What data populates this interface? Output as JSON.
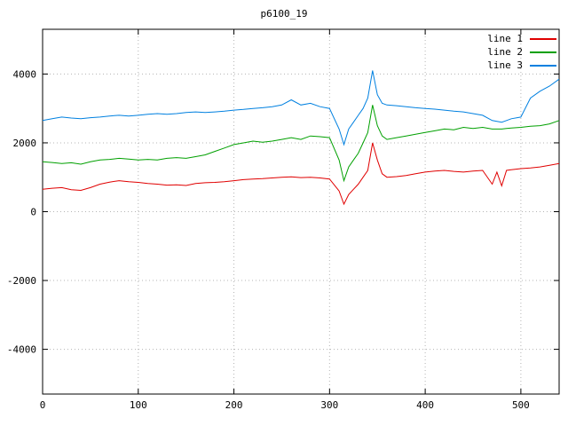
{
  "chart_data": {
    "type": "line",
    "title": "p6100_19",
    "xlabel": "",
    "ylabel": "",
    "grid": true,
    "legend_position": "top-right",
    "x_range": [
      0,
      540
    ],
    "y_range": [
      -5300,
      5300
    ],
    "x_ticks": [
      0,
      100,
      200,
      300,
      400,
      500
    ],
    "y_ticks": [
      -4000,
      -2000,
      0,
      2000,
      4000
    ],
    "x": [
      0,
      10,
      20,
      30,
      40,
      50,
      60,
      70,
      80,
      90,
      100,
      110,
      120,
      130,
      140,
      150,
      160,
      170,
      180,
      190,
      200,
      210,
      220,
      230,
      240,
      250,
      260,
      270,
      280,
      290,
      300,
      310,
      315,
      320,
      325,
      330,
      335,
      340,
      345,
      350,
      355,
      360,
      370,
      380,
      390,
      400,
      410,
      420,
      430,
      440,
      450,
      460,
      470,
      475,
      480,
      485,
      490,
      500,
      510,
      520,
      530,
      540
    ],
    "series": [
      {
        "name": "line 1",
        "color": "#e00000",
        "values": [
          650,
          680,
          700,
          640,
          620,
          700,
          800,
          860,
          900,
          870,
          850,
          820,
          800,
          770,
          780,
          760,
          820,
          840,
          850,
          870,
          900,
          930,
          950,
          960,
          980,
          1000,
          1010,
          990,
          1000,
          980,
          950,
          600,
          220,
          500,
          650,
          800,
          1000,
          1200,
          2000,
          1500,
          1100,
          1000,
          1020,
          1050,
          1100,
          1150,
          1180,
          1200,
          1170,
          1150,
          1180,
          1200,
          800,
          1150,
          750,
          1200,
          1220,
          1250,
          1270,
          1300,
          1350,
          1400
        ]
      },
      {
        "name": "line 2",
        "color": "#00a000",
        "values": [
          1450,
          1430,
          1400,
          1420,
          1380,
          1450,
          1500,
          1520,
          1550,
          1530,
          1500,
          1520,
          1500,
          1550,
          1570,
          1550,
          1600,
          1650,
          1750,
          1850,
          1950,
          2000,
          2050,
          2020,
          2050,
          2100,
          2150,
          2100,
          2200,
          2180,
          2150,
          1500,
          900,
          1300,
          1500,
          1700,
          2000,
          2300,
          3100,
          2500,
          2200,
          2100,
          2150,
          2200,
          2250,
          2300,
          2350,
          2400,
          2380,
          2450,
          2420,
          2450,
          2400,
          2400,
          2400,
          2420,
          2430,
          2450,
          2480,
          2500,
          2550,
          2650
        ]
      },
      {
        "name": "line 3",
        "color": "#0080e0",
        "values": [
          2650,
          2700,
          2750,
          2720,
          2700,
          2730,
          2750,
          2780,
          2800,
          2780,
          2800,
          2830,
          2850,
          2830,
          2850,
          2880,
          2900,
          2880,
          2900,
          2920,
          2950,
          2970,
          3000,
          3020,
          3050,
          3100,
          3250,
          3100,
          3150,
          3050,
          3000,
          2400,
          1950,
          2400,
          2600,
          2800,
          3000,
          3300,
          4100,
          3400,
          3150,
          3100,
          3080,
          3050,
          3020,
          3000,
          2980,
          2950,
          2920,
          2900,
          2850,
          2800,
          2650,
          2625,
          2600,
          2650,
          2700,
          2750,
          3300,
          3500,
          3650,
          3850
        ]
      }
    ],
    "colors": {
      "grid": "#b4b4b4",
      "border": "#000000",
      "background": "#ffffff"
    }
  }
}
